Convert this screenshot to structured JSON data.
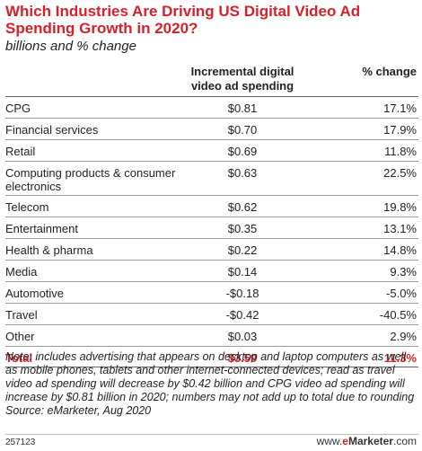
{
  "chart_data": {
    "type": "table",
    "title": "Which Industries Are Driving US Digital Video Ad Spending Growth in 2020?",
    "subtitle": "billions and % change",
    "columns": [
      "",
      "Incremental digital video ad spending",
      "% change"
    ],
    "rows": [
      {
        "label": "CPG",
        "value": "$0.81",
        "pct": "17.1%"
      },
      {
        "label": "Financial services",
        "value": "$0.70",
        "pct": "17.9%"
      },
      {
        "label": "Retail",
        "value": "$0.69",
        "pct": "11.8%"
      },
      {
        "label": "Computing products & consumer electronics",
        "value": "$0.63",
        "pct": "22.5%"
      },
      {
        "label": "Telecom",
        "value": "$0.62",
        "pct": "19.8%"
      },
      {
        "label": "Entertainment",
        "value": "$0.35",
        "pct": "13.1%"
      },
      {
        "label": "Health & pharma",
        "value": "$0.22",
        "pct": "14.8%"
      },
      {
        "label": "Media",
        "value": "$0.14",
        "pct": "9.3%"
      },
      {
        "label": "Automotive",
        "value": "-$0.18",
        "pct": "-5.0%"
      },
      {
        "label": "Travel",
        "value": "-$0.42",
        "pct": "-40.5%"
      },
      {
        "label": "Other",
        "value": "$0.03",
        "pct": "2.9%"
      }
    ],
    "total": {
      "label": "Total",
      "value": "$3.59",
      "pct": "11.3%"
    },
    "note": "Note: includes advertising that appears on desktop and laptop computers as well as mobile phones, tablets and other internet-connected devices; read as travel video ad spending will decrease by $0.42 billion and CPG video ad spending will increase by $0.81 billion in 2020; numbers may not add up to total due to rounding",
    "source": "Source: eMarketer, Aug 2020"
  },
  "footer": {
    "chart_id": "257123",
    "brand_prefix": "www.",
    "brand_e": "e",
    "brand_rest": "Marketer",
    "brand_suffix": ".com"
  },
  "colors": {
    "accent": "#d8202a"
  }
}
